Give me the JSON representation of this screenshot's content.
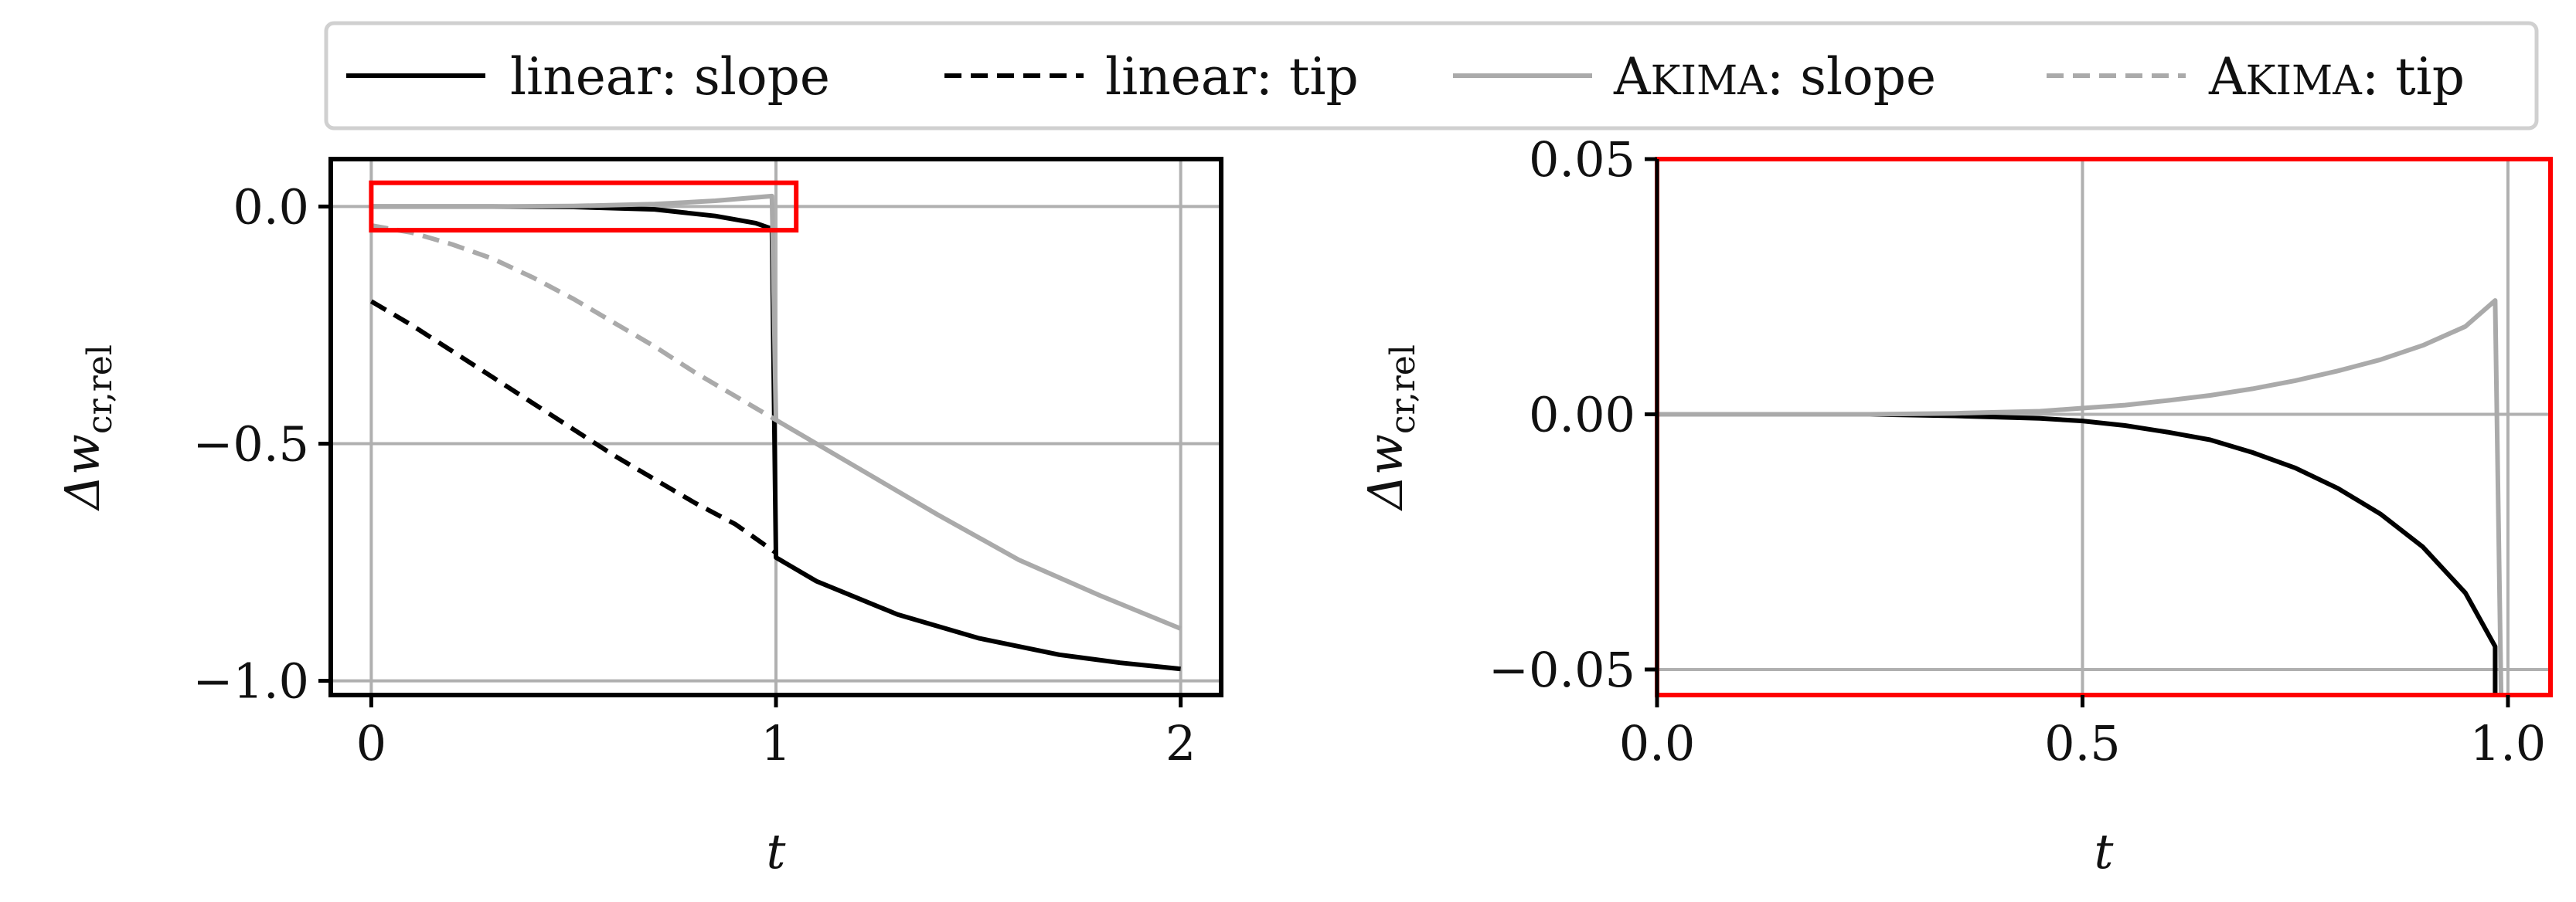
{
  "legend": {
    "entries": [
      {
        "label": "linear: slope",
        "color": "#000000",
        "dash": "solid"
      },
      {
        "label": "linear: tip",
        "color": "#000000",
        "dash": "dashed"
      },
      {
        "label_first": "A",
        "label_sc": "KIMA",
        "label_rest": ": slope",
        "color": "#aaaaaa",
        "dash": "solid"
      },
      {
        "label_first": "A",
        "label_sc": "KIMA",
        "label_rest": ": tip",
        "color": "#aaaaaa",
        "dash": "dashed"
      }
    ]
  },
  "zoom_box_color": "#ff0000",
  "chart_data": [
    {
      "type": "line",
      "xlabel": "t",
      "ylabel": "Δw",
      "ylabel_sub": "cr,rel",
      "xlim": [
        -0.1,
        2.1
      ],
      "ylim": [
        -1.03,
        0.1
      ],
      "xticks": [
        0,
        1,
        2
      ],
      "xtick_labels": [
        "0",
        "1",
        "2"
      ],
      "yticks": [
        0.0,
        -0.5,
        -1.0
      ],
      "ytick_labels": [
        "0.0",
        "−0.5",
        "−1.0"
      ],
      "grid": true,
      "zoom_box": {
        "x": [
          0,
          1.05
        ],
        "y": [
          -0.05,
          0.05
        ]
      },
      "series": [
        {
          "name": "linear: slope",
          "color": "#000000",
          "dash": "solid",
          "points": [
            [
              0,
              0
            ],
            [
              0.3,
              0
            ],
            [
              0.5,
              -0.001
            ],
            [
              0.7,
              -0.006
            ],
            [
              0.85,
              -0.02
            ],
            [
              0.95,
              -0.035
            ],
            [
              0.99,
              -0.047
            ],
            [
              1.0,
              -0.74
            ],
            [
              1.1,
              -0.79
            ],
            [
              1.3,
              -0.86
            ],
            [
              1.5,
              -0.91
            ],
            [
              1.7,
              -0.945
            ],
            [
              1.85,
              -0.962
            ],
            [
              2.0,
              -0.975
            ]
          ]
        },
        {
          "name": "linear: tip",
          "color": "#000000",
          "dash": "dashed",
          "points": [
            [
              0,
              -0.2
            ],
            [
              0.1,
              -0.25
            ],
            [
              0.2,
              -0.305
            ],
            [
              0.3,
              -0.36
            ],
            [
              0.4,
              -0.415
            ],
            [
              0.5,
              -0.47
            ],
            [
              0.6,
              -0.525
            ],
            [
              0.7,
              -0.575
            ],
            [
              0.8,
              -0.625
            ],
            [
              0.9,
              -0.67
            ],
            [
              1.0,
              -0.73
            ]
          ]
        },
        {
          "name": "AKIMA: slope",
          "color": "#aaaaaa",
          "dash": "solid",
          "points": [
            [
              0,
              0
            ],
            [
              0.3,
              0
            ],
            [
              0.5,
              0.001
            ],
            [
              0.7,
              0.005
            ],
            [
              0.85,
              0.012
            ],
            [
              0.99,
              0.022
            ],
            [
              1.0,
              -0.45
            ],
            [
              1.2,
              -0.55
            ],
            [
              1.4,
              -0.65
            ],
            [
              1.6,
              -0.745
            ],
            [
              1.8,
              -0.82
            ],
            [
              2.0,
              -0.89
            ]
          ]
        },
        {
          "name": "AKIMA: tip",
          "color": "#aaaaaa",
          "dash": "dashed",
          "points": [
            [
              0,
              -0.04
            ],
            [
              0.1,
              -0.055
            ],
            [
              0.2,
              -0.08
            ],
            [
              0.3,
              -0.11
            ],
            [
              0.4,
              -0.15
            ],
            [
              0.5,
              -0.195
            ],
            [
              0.6,
              -0.245
            ],
            [
              0.7,
              -0.295
            ],
            [
              0.8,
              -0.35
            ],
            [
              0.9,
              -0.4
            ],
            [
              1.0,
              -0.45
            ]
          ]
        }
      ]
    },
    {
      "type": "line",
      "xlabel": "t",
      "ylabel": "Δw",
      "ylabel_sub": "cr,rel",
      "xlim": [
        0,
        1.05
      ],
      "ylim": [
        -0.055,
        0.05
      ],
      "xticks": [
        0,
        0.5,
        1.0
      ],
      "xtick_labels": [
        "0.0",
        "0.5",
        "1.0"
      ],
      "yticks": [
        0.05,
        0.0,
        -0.05
      ],
      "ytick_labels": [
        "0.05",
        "0.00",
        "−0.05"
      ],
      "grid": true,
      "frame_color": "#ff0000",
      "series": [
        {
          "name": "linear: slope",
          "color": "#000000",
          "dash": "solid",
          "points": [
            [
              0,
              0
            ],
            [
              0.25,
              0
            ],
            [
              0.35,
              -0.0003
            ],
            [
              0.45,
              -0.0008
            ],
            [
              0.5,
              -0.0013
            ],
            [
              0.55,
              -0.0022
            ],
            [
              0.6,
              -0.0035
            ],
            [
              0.65,
              -0.005
            ],
            [
              0.7,
              -0.0075
            ],
            [
              0.75,
              -0.0105
            ],
            [
              0.8,
              -0.0145
            ],
            [
              0.85,
              -0.0195
            ],
            [
              0.9,
              -0.026
            ],
            [
              0.95,
              -0.035
            ],
            [
              0.985,
              -0.0455
            ],
            [
              0.985,
              -0.055
            ]
          ]
        },
        {
          "name": "AKIMA: slope",
          "color": "#aaaaaa",
          "dash": "solid",
          "points": [
            [
              0,
              0
            ],
            [
              0.25,
              0
            ],
            [
              0.35,
              0.0002
            ],
            [
              0.45,
              0.0006
            ],
            [
              0.5,
              0.0012
            ],
            [
              0.55,
              0.0018
            ],
            [
              0.6,
              0.0027
            ],
            [
              0.65,
              0.0037
            ],
            [
              0.7,
              0.005
            ],
            [
              0.75,
              0.0066
            ],
            [
              0.8,
              0.0085
            ],
            [
              0.85,
              0.0107
            ],
            [
              0.9,
              0.0135
            ],
            [
              0.95,
              0.0172
            ],
            [
              0.985,
              0.0223
            ],
            [
              0.992,
              -0.055
            ]
          ]
        }
      ]
    }
  ]
}
